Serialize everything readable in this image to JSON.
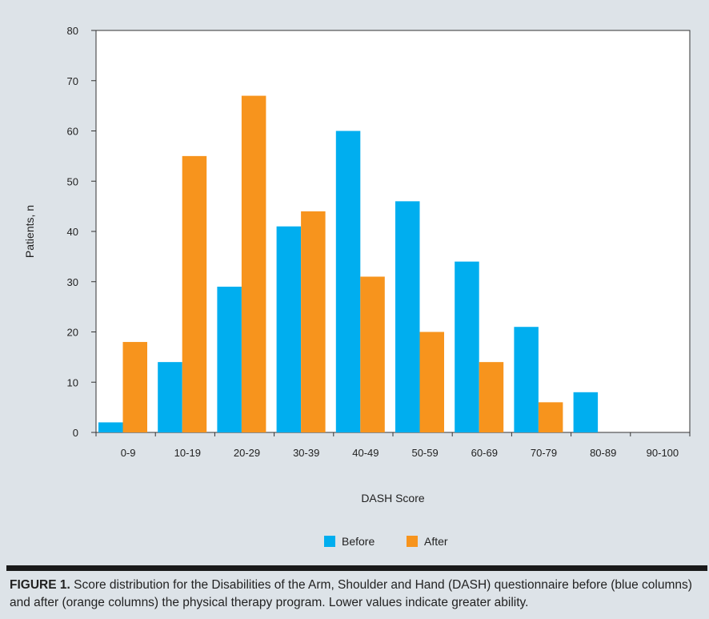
{
  "caption": {
    "label": "FIGURE 1.",
    "text": "Score distribution for the Disabilities of the Arm, Shoulder and Hand (DASH) questionnaire before (blue columns) and after (orange columns) the physical therapy program. Lower values indicate greater ability."
  },
  "chart_data": {
    "type": "bar",
    "title": "",
    "xlabel": "DASH Score",
    "ylabel": "Patients, n",
    "ylim": [
      0,
      80
    ],
    "yticks": [
      0,
      10,
      20,
      30,
      40,
      50,
      60,
      70,
      80
    ],
    "grid": false,
    "legend_position": "bottom-center",
    "categories": [
      "0-9",
      "10-19",
      "20-29",
      "30-39",
      "40-49",
      "50-59",
      "60-69",
      "70-79",
      "80-89",
      "90-100"
    ],
    "series": [
      {
        "name": "Before",
        "color": "#00aeef",
        "values": [
          2,
          14,
          29,
          41,
          60,
          46,
          34,
          21,
          8,
          0
        ]
      },
      {
        "name": "After",
        "color": "#f7941d",
        "values": [
          18,
          55,
          67,
          44,
          31,
          20,
          14,
          6,
          0,
          0
        ]
      }
    ]
  }
}
